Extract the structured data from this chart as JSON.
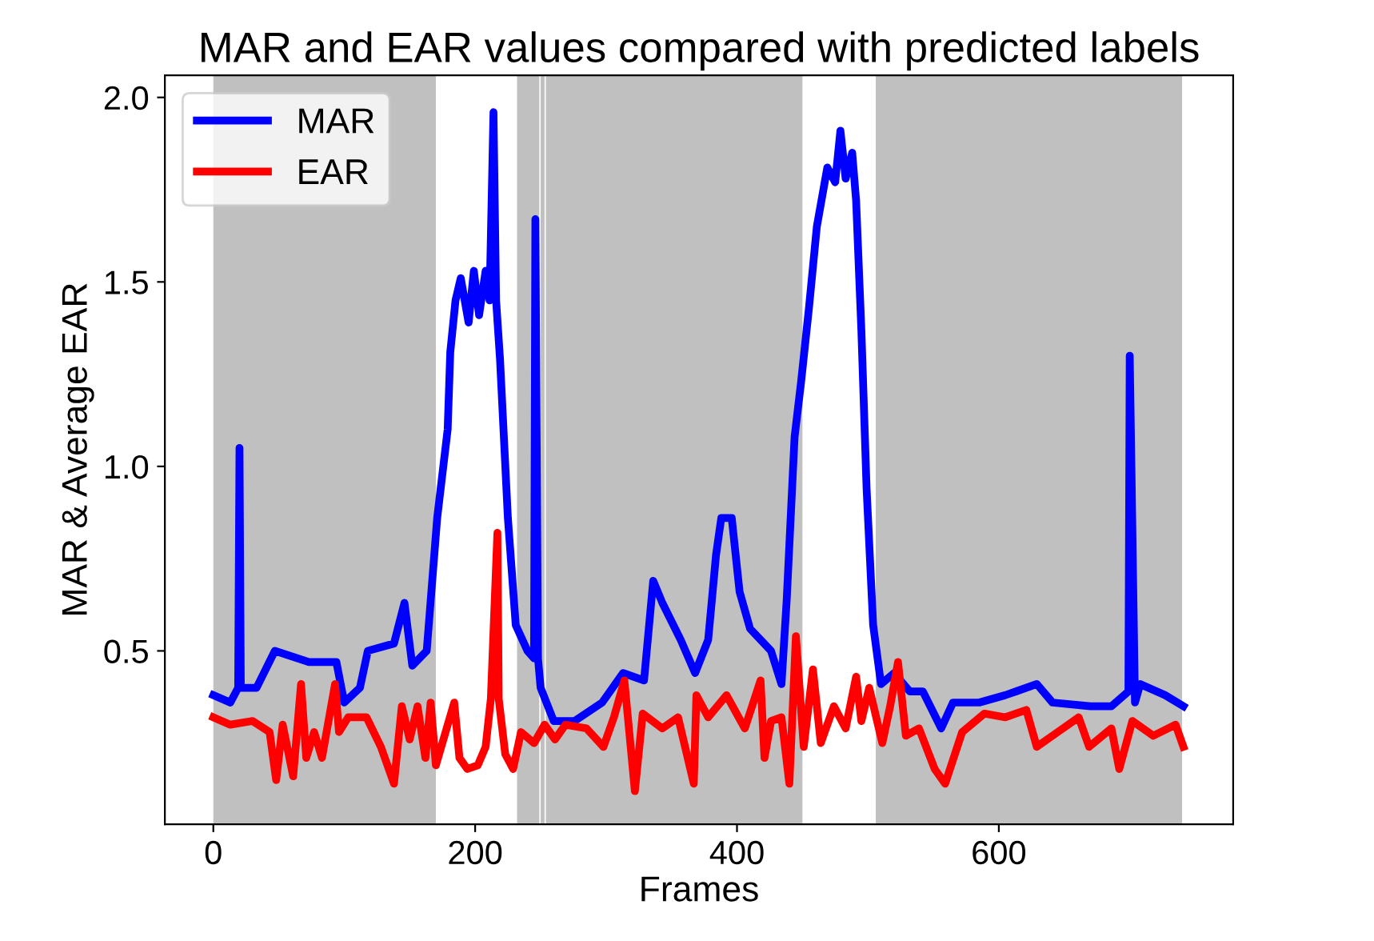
{
  "chart_data": {
    "type": "line",
    "title": "MAR and EAR values compared with predicted labels",
    "xlabel": "Frames",
    "ylabel": "MAR & Average EAR",
    "xlim": [
      -37,
      779
    ],
    "ylim": [
      0.03,
      2.06
    ],
    "xticks": [
      0,
      200,
      400,
      600
    ],
    "yticks": [
      {
        "value": 0.5,
        "label": "0.5"
      },
      {
        "value": 1.0,
        "label": "1.0"
      },
      {
        "value": 1.5,
        "label": "1.5"
      },
      {
        "value": 2.0,
        "label": "2.0"
      }
    ],
    "grid": false,
    "legend": "top left",
    "line_style": "solid",
    "marker": "none",
    "bands": [
      {
        "axis": "x",
        "from": 0,
        "to": 170,
        "color": "#c0c0c0"
      },
      {
        "axis": "x",
        "from": 232,
        "to": 249,
        "color": "#c0c0c0"
      },
      {
        "axis": "x",
        "from": 250,
        "to": 253,
        "color": "#c0c0c0"
      },
      {
        "axis": "x",
        "from": 254,
        "to": 450,
        "color": "#c0c0c0"
      },
      {
        "axis": "x",
        "from": 506,
        "to": 740,
        "color": "#c0c0c0"
      }
    ],
    "series": [
      {
        "name": "MAR",
        "color": "#0000ff",
        "x": [
          0,
          13,
          19,
          20,
          21,
          33,
          47,
          73,
          94,
          100,
          112,
          118,
          138,
          146,
          152,
          163,
          171,
          179,
          181,
          185,
          189,
          195,
          199,
          203,
          208,
          211,
          214,
          216,
          219,
          225,
          231,
          240,
          245,
          246,
          248,
          250,
          260,
          276,
          297,
          313,
          329,
          336,
          343,
          357,
          368,
          378,
          384,
          388,
          396,
          402,
          410,
          426,
          434,
          438,
          444,
          449,
          455,
          461,
          469,
          475,
          479,
          483,
          488,
          491,
          495,
          499,
          504,
          510,
          520,
          532,
          542,
          556,
          565,
          585,
          605,
          629,
          641,
          670,
          686,
          699,
          700,
          704,
          708,
          727,
          741
        ],
        "values": [
          0.38,
          0.36,
          0.4,
          1.05,
          0.4,
          0.4,
          0.5,
          0.47,
          0.47,
          0.36,
          0.4,
          0.5,
          0.52,
          0.63,
          0.46,
          0.5,
          0.86,
          1.1,
          1.31,
          1.45,
          1.51,
          1.39,
          1.53,
          1.41,
          1.53,
          1.45,
          1.96,
          1.45,
          1.29,
          0.86,
          0.57,
          0.5,
          0.48,
          1.67,
          0.48,
          0.4,
          0.31,
          0.31,
          0.36,
          0.44,
          0.42,
          0.69,
          0.63,
          0.53,
          0.44,
          0.53,
          0.76,
          0.86,
          0.86,
          0.66,
          0.56,
          0.5,
          0.41,
          0.64,
          1.08,
          1.23,
          1.43,
          1.65,
          1.81,
          1.77,
          1.91,
          1.78,
          1.85,
          1.72,
          1.37,
          0.94,
          0.57,
          0.41,
          0.44,
          0.39,
          0.39,
          0.29,
          0.36,
          0.36,
          0.38,
          0.41,
          0.36,
          0.35,
          0.35,
          0.39,
          1.3,
          0.36,
          0.41,
          0.38,
          0.35
        ]
      },
      {
        "name": "EAR",
        "color": "#ff0000",
        "x": [
          0,
          13,
          30,
          43,
          48,
          53,
          61,
          67,
          71,
          77,
          83,
          93,
          96,
          103,
          117,
          128,
          138,
          144,
          150,
          156,
          162,
          166,
          170,
          184,
          188,
          194,
          202,
          208,
          212,
          217,
          218,
          223,
          229,
          235,
          245,
          253,
          261,
          269,
          285,
          298,
          306,
          314,
          322,
          328,
          343,
          355,
          367,
          369,
          378,
          392,
          406,
          418,
          421,
          426,
          434,
          440,
          445,
          451,
          458,
          464,
          474,
          483,
          491,
          495,
          501,
          511,
          517,
          523,
          529,
          539,
          551,
          559,
          572,
          589,
          605,
          621,
          629,
          645,
          661,
          669,
          686,
          692,
          702,
          718,
          735,
          741
        ],
        "values": [
          0.32,
          0.3,
          0.31,
          0.28,
          0.15,
          0.3,
          0.16,
          0.41,
          0.21,
          0.28,
          0.21,
          0.41,
          0.28,
          0.32,
          0.32,
          0.24,
          0.14,
          0.35,
          0.26,
          0.35,
          0.21,
          0.36,
          0.19,
          0.36,
          0.21,
          0.18,
          0.19,
          0.24,
          0.37,
          0.82,
          0.37,
          0.22,
          0.18,
          0.28,
          0.25,
          0.3,
          0.26,
          0.3,
          0.29,
          0.24,
          0.32,
          0.42,
          0.12,
          0.33,
          0.29,
          0.32,
          0.14,
          0.38,
          0.32,
          0.38,
          0.29,
          0.42,
          0.21,
          0.31,
          0.32,
          0.14,
          0.54,
          0.24,
          0.45,
          0.25,
          0.35,
          0.29,
          0.43,
          0.31,
          0.4,
          0.25,
          0.35,
          0.47,
          0.27,
          0.29,
          0.18,
          0.14,
          0.28,
          0.33,
          0.32,
          0.34,
          0.24,
          0.28,
          0.32,
          0.24,
          0.29,
          0.18,
          0.31,
          0.27,
          0.3,
          0.24
        ]
      }
    ]
  }
}
